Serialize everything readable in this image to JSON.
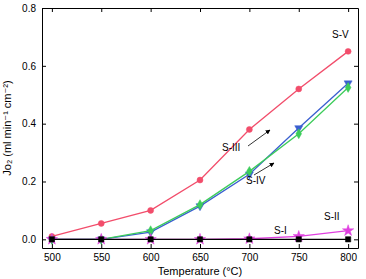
{
  "chart_data": {
    "type": "line",
    "x_label": "Temperature (°C)",
    "y_label": "Jo₂ (ml min⁻¹ cm⁻²)",
    "x": [
      500,
      550,
      600,
      650,
      700,
      750,
      800
    ],
    "xlim": [
      490,
      810
    ],
    "xticks": [
      500,
      550,
      600,
      650,
      700,
      750,
      800
    ],
    "ylim": [
      -0.03,
      0.8
    ],
    "yticks": [
      {
        "value": 0,
        "label": "0.0"
      },
      0.2,
      0.4,
      0.6,
      0.8
    ],
    "grid": false,
    "series": [
      {
        "name": "S-V",
        "color": "#f24d6b",
        "marker": "circle",
        "values": [
          0.01,
          0.055,
          0.1,
          0.205,
          0.38,
          0.52,
          0.65
        ]
      },
      {
        "name": "S-III",
        "color": "#3a5fd0",
        "marker": "triangle-down",
        "values": [
          0,
          0,
          0.025,
          0.115,
          0.225,
          0.385,
          0.54
        ]
      },
      {
        "name": "S-IV",
        "color": "#3ccc5a",
        "marker": "diamond",
        "values": [
          0,
          0,
          0.03,
          0.12,
          0.235,
          0.365,
          0.525
        ]
      },
      {
        "name": "S-II",
        "color": "#e040e0",
        "marker": "star",
        "values": [
          0,
          0,
          0,
          0,
          0.002,
          0.01,
          0.03
        ]
      },
      {
        "name": "S-I",
        "color": "#000000",
        "marker": "square",
        "values": [
          0,
          0,
          0,
          0,
          0,
          0,
          0
        ]
      }
    ]
  }
}
